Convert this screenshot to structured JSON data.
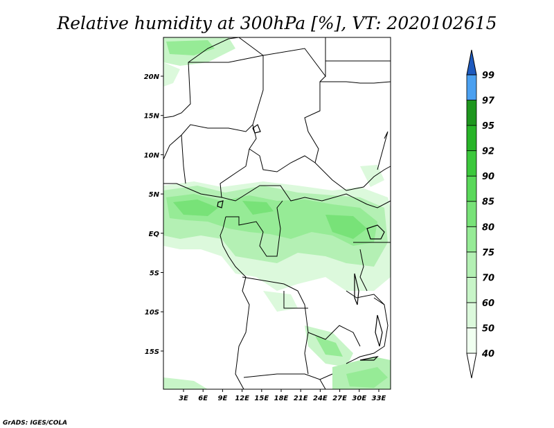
{
  "title": "Relative humidity at 300hPa [%], VT: 2020102615",
  "credit": "GrADS: IGES/COLA",
  "map": {
    "lon_labels": [
      "3E",
      "6E",
      "9E",
      "12E",
      "15E",
      "18E",
      "21E",
      "24E",
      "27E",
      "30E",
      "33E"
    ],
    "lat_labels": [
      "20N",
      "15N",
      "10N",
      "5N",
      "EQ",
      "5S",
      "10S",
      "15S"
    ]
  },
  "colorbar": {
    "labels": [
      "40",
      "50",
      "60",
      "70",
      "75",
      "80",
      "85",
      "90",
      "92",
      "95",
      "97",
      "99"
    ],
    "colors": [
      "#f0fff0",
      "#dcf9dc",
      "#c8f5c8",
      "#b4f0b4",
      "#96eb96",
      "#78e278",
      "#5ad85a",
      "#3cc83c",
      "#28b428",
      "#1e961e",
      "#4ba0f0",
      "#2878dc",
      "#1e5abe"
    ]
  }
}
